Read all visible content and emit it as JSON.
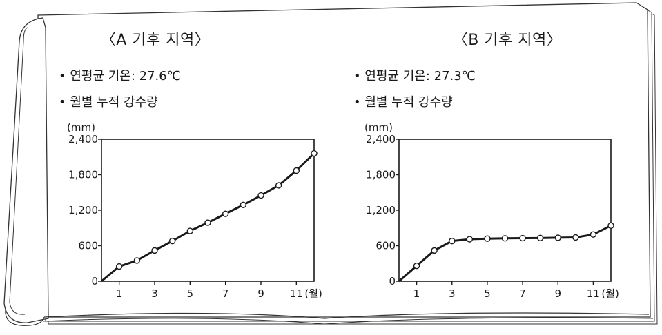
{
  "chart_data": [
    {
      "type": "line",
      "title": "〈A 기후 지역〉",
      "info": [
        "• 연평균 기온: 27.6℃",
        "• 월별 누적 강수량"
      ],
      "ylabel": "(mm)",
      "xlabel": "(월)",
      "ylim": [
        0,
        2400
      ],
      "xlim": [
        0,
        12
      ],
      "yticks": [
        "0",
        "600",
        "1,200",
        "1,800",
        "2,400"
      ],
      "ytick_values": [
        0,
        600,
        1200,
        1800,
        2400
      ],
      "xticks": [
        "1",
        "3",
        "5",
        "7",
        "9",
        "11"
      ],
      "xtick_values": [
        1,
        3,
        5,
        7,
        9,
        11
      ],
      "x": [
        0,
        1,
        2,
        3,
        4,
        5,
        6,
        7,
        8,
        9,
        10,
        11,
        12
      ],
      "values": [
        0,
        250,
        350,
        520,
        680,
        850,
        990,
        1140,
        1290,
        1450,
        1620,
        1870,
        2160
      ]
    },
    {
      "type": "line",
      "title": "〈B 기후 지역〉",
      "info": [
        "• 연평균 기온: 27.3℃",
        "• 월별 누적 강수량"
      ],
      "ylabel": "(mm)",
      "xlabel": "(월)",
      "ylim": [
        0,
        2400
      ],
      "xlim": [
        0,
        12
      ],
      "yticks": [
        "0",
        "600",
        "1,200",
        "1,800",
        "2,400"
      ],
      "ytick_values": [
        0,
        600,
        1200,
        1800,
        2400
      ],
      "xticks": [
        "1",
        "3",
        "5",
        "7",
        "9",
        "11"
      ],
      "xtick_values": [
        1,
        3,
        5,
        7,
        9,
        11
      ],
      "x": [
        0,
        1,
        2,
        3,
        4,
        5,
        6,
        7,
        8,
        9,
        10,
        11,
        12
      ],
      "values": [
        0,
        260,
        520,
        680,
        710,
        720,
        725,
        728,
        730,
        735,
        740,
        790,
        940
      ]
    }
  ]
}
